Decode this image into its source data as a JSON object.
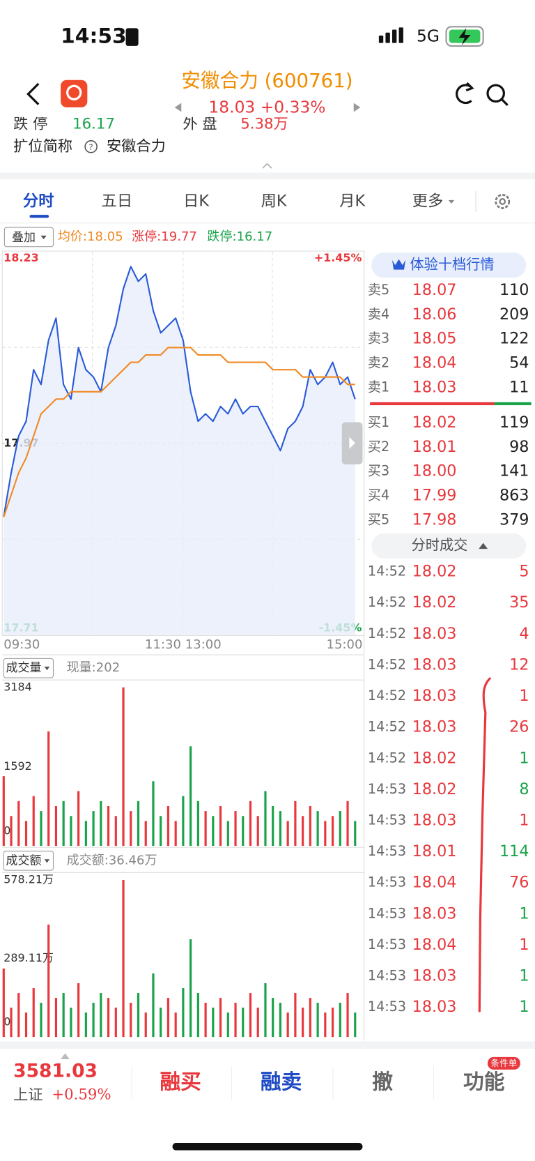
{
  "status_bar": {
    "time": "14:53",
    "network": "5G"
  },
  "header": {
    "title": "安徽合力 (600761)",
    "price_line": "18.03 +0.33%"
  },
  "info_row": {
    "limit_down_label": "跌 停",
    "limit_down": "16.17",
    "outer_label": "外 盘",
    "outer": "5.38万"
  },
  "alias": {
    "label": "扩位简称",
    "value": "安徽合力"
  },
  "tabs": [
    "分时",
    "五日",
    "日K",
    "周K",
    "月K",
    "更多"
  ],
  "overlay": {
    "button": "叠加",
    "avg": "均价:18.05",
    "limit_up": "涨停:19.77",
    "limit_down": "跌停:16.17"
  },
  "chart_data": [
    {
      "type": "line",
      "series": [
        {
          "color": "#2a5bd7",
          "values": [
            17.87,
            17.93,
            17.98,
            18.0,
            18.07,
            18.05,
            18.11,
            18.14,
            18.05,
            18.03,
            18.1,
            18.07,
            18.06,
            18.04,
            18.1,
            18.13,
            18.18,
            18.21,
            18.19,
            18.2,
            18.15,
            18.12,
            18.13,
            18.14,
            18.11,
            18.04,
            18.0,
            18.01,
            18.0,
            18.02,
            18.01,
            18.03,
            18.01,
            18.02,
            18.02,
            18.0,
            17.98,
            17.96,
            17.99,
            18.0,
            18.02,
            18.07,
            18.05,
            18.06,
            18.08,
            18.05,
            18.06,
            18.03
          ]
        },
        {
          "color": "#f08a24",
          "values": [
            17.87,
            17.9,
            17.93,
            17.95,
            17.98,
            18.01,
            18.02,
            18.03,
            18.03,
            18.04,
            18.04,
            18.04,
            18.04,
            18.04,
            18.05,
            18.06,
            18.07,
            18.08,
            18.08,
            18.09,
            18.09,
            18.09,
            18.1,
            18.1,
            18.1,
            18.1,
            18.09,
            18.09,
            18.09,
            18.09,
            18.08,
            18.08,
            18.08,
            18.08,
            18.08,
            18.08,
            18.07,
            18.07,
            18.07,
            18.07,
            18.06,
            18.06,
            18.06,
            18.06,
            18.06,
            18.06,
            18.05,
            18.05
          ]
        }
      ],
      "xlim": [
        0,
        48
      ],
      "xticks": [
        {
          "value": 0,
          "label": "09:30"
        },
        {
          "value": 24,
          "label": "11:30 13:00"
        },
        {
          "value": 48,
          "label": "15:00"
        }
      ],
      "ylim": [
        17.71,
        18.23
      ],
      "yticks": [
        17.71,
        17.97,
        18.23
      ],
      "y2lim": [
        -1.45,
        1.45
      ],
      "y2ticks": [
        {
          "value": -1.45,
          "label": "-1.45%"
        },
        {
          "value": 1.45,
          "label": "+1.45%"
        }
      ],
      "grid": true
    },
    {
      "type": "bar",
      "button": "成交量",
      "label": "现量:202",
      "values": [
        1400,
        600,
        900,
        500,
        1000,
        700,
        2300,
        800,
        900,
        600,
        1100,
        500,
        700,
        900,
        800,
        600,
        3184,
        700,
        900,
        500,
        1300,
        600,
        800,
        500,
        1000,
        2000,
        900,
        700,
        600,
        800,
        500,
        700,
        600,
        900,
        600,
        1100,
        800,
        700,
        500,
        900,
        600,
        800,
        700,
        500,
        600,
        700,
        900,
        500
      ],
      "xlim": [
        0,
        48
      ],
      "ylim": [
        0,
        3184
      ],
      "yticks": [
        0,
        1592,
        3184
      ],
      "up_color": "#e8383d",
      "down_color": "#1aa34a"
    },
    {
      "type": "bar",
      "button": "成交额",
      "label": "成交额:36.46万",
      "values": [
        252,
        108,
        162,
        90,
        180,
        126,
        414,
        144,
        162,
        108,
        198,
        90,
        126,
        162,
        144,
        108,
        578.21,
        126,
        162,
        90,
        234,
        108,
        144,
        90,
        180,
        360,
        162,
        126,
        108,
        144,
        90,
        126,
        108,
        162,
        108,
        198,
        144,
        126,
        90,
        162,
        108,
        144,
        126,
        90,
        108,
        126,
        162,
        90
      ],
      "xlim": [
        0,
        48
      ],
      "ylim": [
        0,
        578.21
      ],
      "yticks": [
        0,
        {
          "value": 289.11,
          "label": "289.11万"
        },
        {
          "value": 578.21,
          "label": "578.21万"
        }
      ],
      "up_color": "#e8383d",
      "down_color": "#1aa34a"
    }
  ],
  "order_book": {
    "button": "体验十档行情",
    "sells": [
      {
        "label": "卖5",
        "price": "18.07",
        "volume": "110"
      },
      {
        "label": "卖4",
        "price": "18.06",
        "volume": "209"
      },
      {
        "label": "卖3",
        "price": "18.05",
        "volume": "122"
      },
      {
        "label": "卖2",
        "price": "18.04",
        "volume": "54"
      },
      {
        "label": "卖1",
        "price": "18.03",
        "volume": "11"
      }
    ],
    "buys": [
      {
        "label": "买1",
        "price": "18.02",
        "volume": "119"
      },
      {
        "label": "买2",
        "price": "18.01",
        "volume": "98"
      },
      {
        "label": "买3",
        "price": "18.00",
        "volume": "141"
      },
      {
        "label": "买4",
        "price": "17.99",
        "volume": "863"
      },
      {
        "label": "买5",
        "price": "17.98",
        "volume": "379"
      }
    ]
  },
  "trades_toggle": "分时成交",
  "trades": [
    {
      "time": "14:52",
      "price": "18.02",
      "volume": "5",
      "color": "#e8383d"
    },
    {
      "time": "14:52",
      "price": "18.02",
      "volume": "35",
      "color": "#e8383d"
    },
    {
      "time": "14:52",
      "price": "18.03",
      "volume": "4",
      "color": "#e8383d"
    },
    {
      "time": "14:52",
      "price": "18.03",
      "volume": "12",
      "color": "#e8383d"
    },
    {
      "time": "14:52",
      "price": "18.03",
      "volume": "1",
      "color": "#e8383d"
    },
    {
      "time": "14:52",
      "price": "18.03",
      "volume": "26",
      "color": "#e8383d"
    },
    {
      "time": "14:52",
      "price": "18.02",
      "volume": "1",
      "color": "#1aa34a"
    },
    {
      "time": "14:53",
      "price": "18.02",
      "volume": "8",
      "color": "#1aa34a"
    },
    {
      "time": "14:53",
      "price": "18.03",
      "volume": "1",
      "color": "#e8383d"
    },
    {
      "time": "14:53",
      "price": "18.01",
      "volume": "114",
      "color": "#1aa34a"
    },
    {
      "time": "14:53",
      "price": "18.04",
      "volume": "76",
      "color": "#e8383d"
    },
    {
      "time": "14:53",
      "price": "18.03",
      "volume": "1",
      "color": "#1aa34a"
    },
    {
      "time": "14:53",
      "price": "18.04",
      "volume": "1",
      "color": "#e8383d"
    },
    {
      "time": "14:53",
      "price": "18.03",
      "volume": "1",
      "color": "#1aa34a"
    },
    {
      "time": "14:53",
      "price": "18.03",
      "volume": "1",
      "color": "#1aa34a"
    }
  ],
  "bottom": {
    "index_value": "3581.03",
    "index_name": "上证",
    "index_change": "+0.59%",
    "buttons": [
      "融买",
      "融卖",
      "撤",
      "功能"
    ],
    "badge": "条件单"
  }
}
